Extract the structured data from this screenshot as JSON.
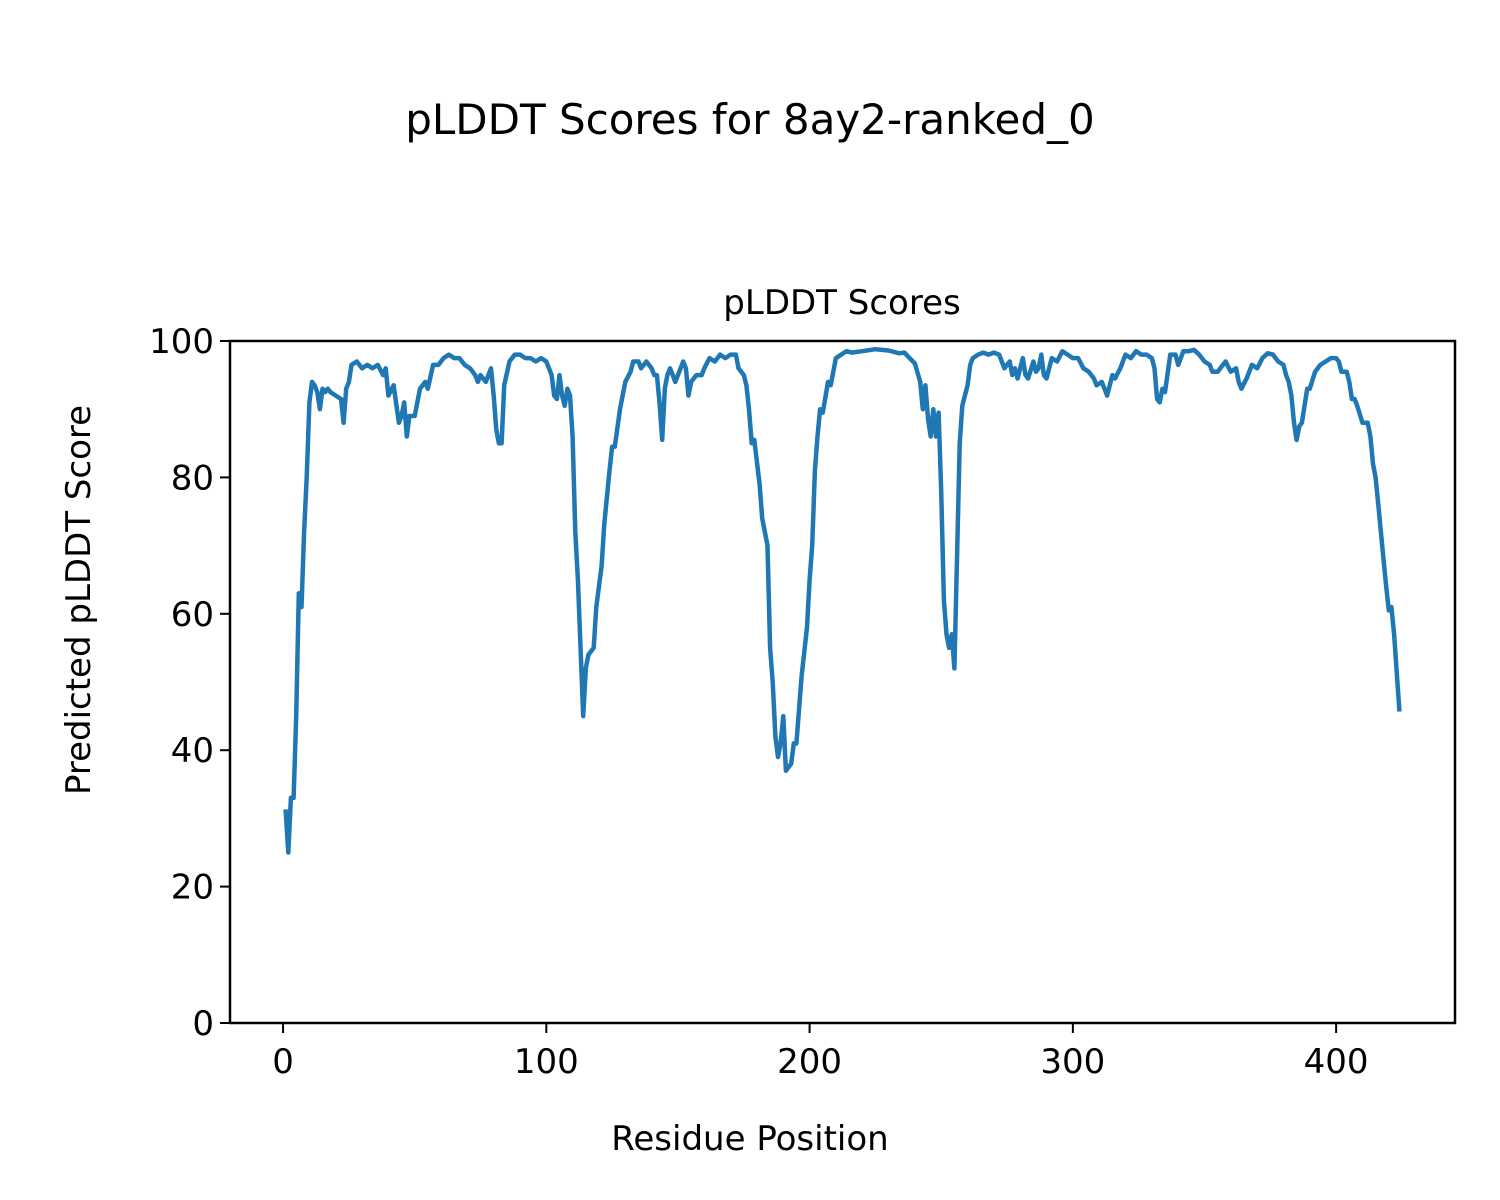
{
  "chart_data": {
    "type": "line",
    "suptitle": "pLDDT Scores for 8ay2-ranked_0",
    "title": "pLDDT Scores",
    "xlabel": "Residue Position",
    "ylabel": "Predicted pLDDT Score",
    "xlim": [
      -20.15,
      445.15
    ],
    "ylim": [
      0,
      100
    ],
    "xticks": [
      0,
      100,
      200,
      300,
      400
    ],
    "yticks": [
      0,
      20,
      40,
      60,
      80,
      100
    ],
    "xtick_labels": [
      "0",
      "100",
      "200",
      "300",
      "400"
    ],
    "ytick_labels": [
      "0",
      "20",
      "40",
      "60",
      "80",
      "100"
    ],
    "grid": false,
    "series": [
      {
        "name": "pLDDT",
        "color": "#1f77b4",
        "points": [
          [
            1,
            31
          ],
          [
            2,
            25
          ],
          [
            3,
            33
          ],
          [
            4,
            33
          ],
          [
            5,
            45
          ],
          [
            6,
            63
          ],
          [
            7,
            61
          ],
          [
            8,
            72
          ],
          [
            9,
            80
          ],
          [
            10,
            91
          ],
          [
            11,
            94
          ],
          [
            12,
            93.5
          ],
          [
            13,
            92.5
          ],
          [
            14,
            90
          ],
          [
            15,
            93
          ],
          [
            16,
            92.5
          ],
          [
            17,
            93
          ],
          [
            18,
            92.5
          ],
          [
            20,
            92
          ],
          [
            22,
            91.5
          ],
          [
            23,
            88
          ],
          [
            24,
            93
          ],
          [
            25,
            94
          ],
          [
            26,
            96.5
          ],
          [
            28,
            97
          ],
          [
            30,
            96
          ],
          [
            32,
            96.5
          ],
          [
            34,
            96
          ],
          [
            36,
            96.5
          ],
          [
            38,
            95
          ],
          [
            39,
            96
          ],
          [
            40,
            92
          ],
          [
            42,
            93.5
          ],
          [
            44,
            88
          ],
          [
            45,
            89
          ],
          [
            46,
            91
          ],
          [
            47,
            86
          ],
          [
            48,
            89
          ],
          [
            50,
            89
          ],
          [
            52,
            93
          ],
          [
            54,
            94
          ],
          [
            55,
            93
          ],
          [
            57,
            96.5
          ],
          [
            59,
            96.5
          ],
          [
            61,
            97.5
          ],
          [
            63,
            98
          ],
          [
            65,
            97.5
          ],
          [
            67,
            97.5
          ],
          [
            69,
            96.5
          ],
          [
            71,
            96
          ],
          [
            73,
            95
          ],
          [
            74,
            94
          ],
          [
            75,
            95
          ],
          [
            77,
            94
          ],
          [
            79,
            96
          ],
          [
            80,
            92
          ],
          [
            81,
            87
          ],
          [
            82,
            85
          ],
          [
            83,
            85
          ],
          [
            84,
            93.5
          ],
          [
            86,
            97
          ],
          [
            88,
            98
          ],
          [
            90,
            98
          ],
          [
            92,
            97.5
          ],
          [
            94,
            97.5
          ],
          [
            96,
            97
          ],
          [
            98,
            97.5
          ],
          [
            100,
            97
          ],
          [
            102,
            95
          ],
          [
            103,
            92
          ],
          [
            104,
            91.5
          ],
          [
            105,
            95
          ],
          [
            106,
            92
          ],
          [
            107,
            90.5
          ],
          [
            108,
            93
          ],
          [
            109,
            92
          ],
          [
            110,
            86
          ],
          [
            111,
            72
          ],
          [
            112,
            65
          ],
          [
            114,
            45
          ],
          [
            115,
            52
          ],
          [
            116,
            54
          ],
          [
            118,
            55
          ],
          [
            119,
            61
          ],
          [
            121,
            67
          ],
          [
            122,
            73
          ],
          [
            124,
            81
          ],
          [
            125,
            84.5
          ],
          [
            126,
            84.5
          ],
          [
            128,
            90
          ],
          [
            130,
            94
          ],
          [
            132,
            95.5
          ],
          [
            133,
            97
          ],
          [
            135,
            97
          ],
          [
            136,
            96
          ],
          [
            138,
            97
          ],
          [
            140,
            96
          ],
          [
            141,
            95
          ],
          [
            142,
            95
          ],
          [
            143,
            91
          ],
          [
            144,
            85.5
          ],
          [
            145,
            93
          ],
          [
            146,
            95
          ],
          [
            147,
            96
          ],
          [
            149,
            94
          ],
          [
            151,
            96
          ],
          [
            152,
            97
          ],
          [
            153,
            96
          ],
          [
            154,
            92
          ],
          [
            155,
            94
          ],
          [
            157,
            95
          ],
          [
            159,
            95
          ],
          [
            160,
            96
          ],
          [
            162,
            97.5
          ],
          [
            164,
            97
          ],
          [
            166,
            98
          ],
          [
            168,
            97.5
          ],
          [
            170,
            98
          ],
          [
            172,
            98
          ],
          [
            173,
            96
          ],
          [
            175,
            95
          ],
          [
            176,
            93.5
          ],
          [
            177,
            90
          ],
          [
            178,
            85
          ],
          [
            179,
            85.5
          ],
          [
            181,
            79
          ],
          [
            182,
            74
          ],
          [
            184,
            70
          ],
          [
            185,
            55
          ],
          [
            186,
            50
          ],
          [
            187,
            42
          ],
          [
            188,
            39
          ],
          [
            189,
            41
          ],
          [
            190,
            45
          ],
          [
            191,
            37
          ],
          [
            192,
            37.5
          ],
          [
            193,
            38
          ],
          [
            194,
            41
          ],
          [
            195,
            41
          ],
          [
            197,
            51
          ],
          [
            199,
            58
          ],
          [
            200,
            65
          ],
          [
            201,
            70
          ],
          [
            202,
            81
          ],
          [
            203,
            86
          ],
          [
            204,
            90
          ],
          [
            205,
            89.5
          ],
          [
            207,
            94
          ],
          [
            208,
            93.5
          ],
          [
            209,
            95.5
          ],
          [
            210,
            97.5
          ],
          [
            212,
            98
          ],
          [
            214,
            98.5
          ],
          [
            216,
            98.3
          ],
          [
            220,
            98.5
          ],
          [
            225,
            98.8
          ],
          [
            230,
            98.6
          ],
          [
            234,
            98.2
          ],
          [
            236,
            98.3
          ],
          [
            238,
            97.5
          ],
          [
            240,
            96.7
          ],
          [
            242,
            94
          ],
          [
            243,
            90
          ],
          [
            244,
            93.5
          ],
          [
            245,
            88.5
          ],
          [
            246,
            86
          ],
          [
            247,
            90
          ],
          [
            248,
            86
          ],
          [
            249,
            89.5
          ],
          [
            250,
            78
          ],
          [
            251,
            62
          ],
          [
            252,
            57
          ],
          [
            253,
            55
          ],
          [
            254,
            57
          ],
          [
            255,
            52
          ],
          [
            256,
            68
          ],
          [
            257,
            85
          ],
          [
            258,
            90.5
          ],
          [
            259,
            92
          ],
          [
            260,
            93.5
          ],
          [
            261,
            96.5
          ],
          [
            262,
            97.5
          ],
          [
            264,
            98
          ],
          [
            266,
            98.3
          ],
          [
            268,
            98
          ],
          [
            270,
            98.3
          ],
          [
            272,
            98
          ],
          [
            273,
            97
          ],
          [
            274,
            96
          ],
          [
            276,
            97
          ],
          [
            277,
            95
          ],
          [
            278,
            96
          ],
          [
            279,
            94.5
          ],
          [
            281,
            97.5
          ],
          [
            282,
            95
          ],
          [
            283,
            94.5
          ],
          [
            285,
            97
          ],
          [
            286,
            95.5
          ],
          [
            287,
            96
          ],
          [
            288,
            98
          ],
          [
            289,
            95
          ],
          [
            290,
            94.5
          ],
          [
            292,
            97.5
          ],
          [
            294,
            97
          ],
          [
            296,
            98.5
          ],
          [
            298,
            98
          ],
          [
            300,
            97.5
          ],
          [
            302,
            97.5
          ],
          [
            304,
            96
          ],
          [
            306,
            95.5
          ],
          [
            308,
            94.5
          ],
          [
            309,
            93.5
          ],
          [
            311,
            94
          ],
          [
            312,
            93
          ],
          [
            313,
            92
          ],
          [
            315,
            95
          ],
          [
            316,
            94.5
          ],
          [
            318,
            96
          ],
          [
            320,
            98
          ],
          [
            322,
            97.5
          ],
          [
            324,
            98.5
          ],
          [
            326,
            98
          ],
          [
            328,
            98
          ],
          [
            330,
            97.5
          ],
          [
            331,
            96
          ],
          [
            332,
            91.5
          ],
          [
            333,
            91
          ],
          [
            334,
            93
          ],
          [
            335,
            92.5
          ],
          [
            337,
            98
          ],
          [
            339,
            98
          ],
          [
            340,
            96.5
          ],
          [
            342,
            98.5
          ],
          [
            344,
            98.5
          ],
          [
            346,
            98.7
          ],
          [
            348,
            98
          ],
          [
            350,
            97
          ],
          [
            352,
            96.5
          ],
          [
            353,
            95.5
          ],
          [
            355,
            95.5
          ],
          [
            357,
            96.5
          ],
          [
            358,
            97
          ],
          [
            360,
            95.5
          ],
          [
            362,
            96
          ],
          [
            363,
            94
          ],
          [
            364,
            93
          ],
          [
            366,
            94.5
          ],
          [
            368,
            96.5
          ],
          [
            370,
            96
          ],
          [
            372,
            97.5
          ],
          [
            374,
            98.2
          ],
          [
            376,
            98
          ],
          [
            378,
            97
          ],
          [
            380,
            96.5
          ],
          [
            381,
            95
          ],
          [
            382,
            94
          ],
          [
            383,
            92
          ],
          [
            384,
            88
          ],
          [
            385,
            85.5
          ],
          [
            386,
            87.5
          ],
          [
            387,
            88
          ],
          [
            389,
            93
          ],
          [
            390,
            93
          ],
          [
            392,
            95.5
          ],
          [
            394,
            96.5
          ],
          [
            396,
            97
          ],
          [
            398,
            97.5
          ],
          [
            400,
            97.5
          ],
          [
            401,
            97
          ],
          [
            402,
            95.5
          ],
          [
            404,
            95.5
          ],
          [
            405,
            94
          ],
          [
            406,
            91.5
          ],
          [
            407,
            91.5
          ],
          [
            408,
            90.5
          ],
          [
            410,
            88
          ],
          [
            412,
            88
          ],
          [
            413,
            86
          ],
          [
            414,
            82
          ],
          [
            415,
            80
          ],
          [
            416,
            76
          ],
          [
            418,
            68
          ],
          [
            419,
            64
          ],
          [
            420,
            60.5
          ],
          [
            421,
            61
          ],
          [
            422,
            57
          ],
          [
            424,
            46
          ]
        ]
      }
    ]
  }
}
